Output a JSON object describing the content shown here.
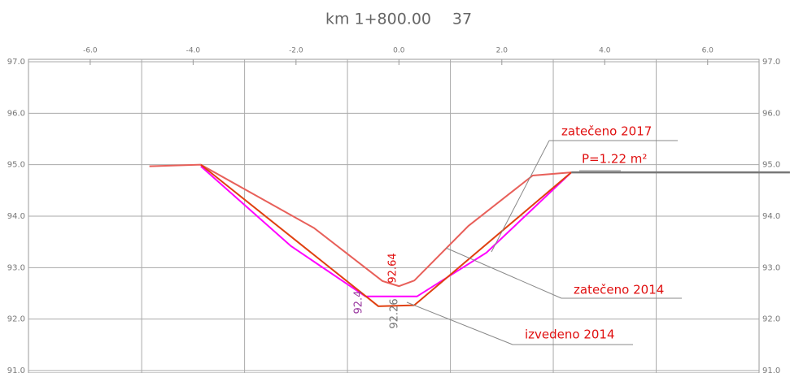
{
  "chart_data": {
    "type": "line",
    "title": "km 1+800.00",
    "subtitle": "37",
    "xlim": [
      -7.2,
      7.0
    ],
    "xticks": [
      {
        "value": -6,
        "label": "-6.0"
      },
      {
        "value": -4,
        "label": "-4.0"
      },
      {
        "value": -2,
        "label": "-2.0"
      },
      {
        "value": 0,
        "label": "0.0"
      },
      {
        "value": 2,
        "label": "2.0"
      },
      {
        "value": 4,
        "label": "4.0"
      },
      {
        "value": 6,
        "label": "6.0"
      }
    ],
    "xgrid": [
      -5,
      -3,
      -1,
      1,
      3,
      5
    ],
    "ylim": [
      91,
      97
    ],
    "yticks": [
      {
        "value": 91,
        "label": "91.0"
      },
      {
        "value": 92,
        "label": "92.0"
      },
      {
        "value": 93,
        "label": "93.0"
      },
      {
        "value": 94,
        "label": "94.0"
      },
      {
        "value": 95,
        "label": "95.0"
      },
      {
        "value": 96,
        "label": "96.0"
      },
      {
        "value": 97,
        "label": "97.0"
      }
    ],
    "grid": true,
    "series": [
      {
        "name": "zatečeno 2017",
        "color": "#e8605a",
        "x": [
          -4.85,
          -3.85,
          -1.65,
          -0.32,
          0.0,
          0.3,
          1.35,
          2.6,
          3.35
        ],
        "values": [
          94.97,
          95.0,
          93.77,
          92.74,
          92.64,
          92.75,
          93.81,
          94.79,
          94.85
        ]
      },
      {
        "name": "zatečeno 2014",
        "color": "#ff00ff",
        "x": [
          -3.85,
          -2.1,
          -0.65,
          0.35,
          1.7,
          3.35
        ],
        "values": [
          94.97,
          93.42,
          92.44,
          92.44,
          93.29,
          94.85
        ]
      },
      {
        "name": "izvedeno 2014",
        "color": "#e04010",
        "x": [
          -3.85,
          -0.4,
          0.3,
          3.35
        ],
        "values": [
          95.0,
          92.25,
          92.27,
          94.85
        ]
      },
      {
        "color": "#777777",
        "x": [
          3.35,
          7.6
        ],
        "values": [
          94.85,
          94.85
        ]
      }
    ],
    "annotations": [
      "P=1.22 m²",
      "92.64",
      "92.4",
      "92.26"
    ]
  }
}
